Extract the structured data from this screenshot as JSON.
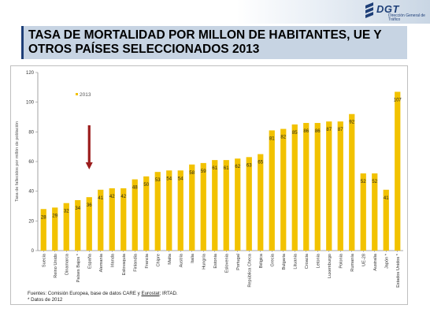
{
  "header": {
    "logo_text": "DGT",
    "logo_subtitle": "Dirección General de Tráfico",
    "title": "TASA DE MORTALIDAD POR MILLON DE HABITANTES, UE Y OTROS PAÍSES SELECCIONADOS 2013"
  },
  "colors": {
    "bar": "#f2c200",
    "arrow": "#9b1c1c",
    "title_bg": "#c7d4e3",
    "accent": "#1e3f78"
  },
  "chart_data": {
    "type": "bar",
    "ylabel": "Tasa de fallecidos por millón de población",
    "ylim": [
      0,
      120
    ],
    "yticks": [
      0,
      20,
      40,
      60,
      80,
      100,
      120
    ],
    "grid": false,
    "legend_position": "top-left",
    "highlight_category": "España",
    "categories": [
      "Suecia",
      "Reino Unido",
      "Dinamarca",
      "Países Bajos *",
      "España",
      "Alemania",
      "Irlanda",
      "Eslovaquia",
      "Finlandia",
      "Francia",
      "Chipre",
      "Malta",
      "Austria",
      "Italia",
      "Hungría",
      "Estonia",
      "Eslovenia",
      "Portugal",
      "República Checa",
      "Bélgica",
      "Grecia",
      "Bulgaria",
      "Lituania",
      "Croacia",
      "Letonia",
      "Luxemburgo",
      "Polonia",
      "Rumanía",
      "UE-28",
      "Australia",
      "Japón *",
      "Estados Unidos *"
    ],
    "series": [
      {
        "name": "2013",
        "values": [
          28,
          29,
          32,
          34,
          36,
          41,
          42,
          42,
          48,
          50,
          53,
          54,
          54,
          58,
          59,
          61,
          61,
          62,
          63,
          65,
          81,
          82,
          85,
          86,
          86,
          87,
          87,
          92,
          52,
          52,
          41,
          107
        ]
      }
    ]
  },
  "footnote": {
    "line1_prefix": "Fuentes:  Comisión Europea, base de datos CARE  y ",
    "line1_link": "Eurostat",
    "line1_suffix": ";  IRTAD.",
    "line2": "* Datos de 2012"
  }
}
